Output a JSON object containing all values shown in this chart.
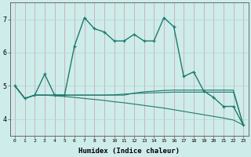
{
  "xlabel": "Humidex (Indice chaleur)",
  "background_color": "#ceecea",
  "grid_color": "#aed8d4",
  "line_color": "#1e7a6e",
  "x_values": [
    0,
    1,
    2,
    3,
    4,
    5,
    6,
    7,
    8,
    9,
    10,
    11,
    12,
    13,
    14,
    15,
    16,
    17,
    18,
    19,
    20,
    21,
    22,
    23
  ],
  "series1": [
    5.0,
    4.62,
    4.72,
    5.35,
    4.72,
    4.72,
    6.2,
    7.05,
    6.72,
    6.62,
    6.35,
    6.35,
    6.55,
    6.35,
    6.35,
    7.05,
    6.78,
    5.28,
    5.42,
    4.85,
    4.65,
    4.38,
    4.38,
    3.82
  ],
  "series2": [
    5.0,
    4.62,
    4.72,
    4.72,
    4.72,
    4.72,
    4.72,
    4.72,
    4.72,
    4.72,
    4.72,
    4.72,
    4.78,
    4.82,
    4.84,
    4.86,
    4.87,
    4.87,
    4.87,
    4.87,
    4.87,
    4.87,
    4.87,
    3.82
  ],
  "series3": [
    5.0,
    4.62,
    4.72,
    4.72,
    4.7,
    4.68,
    4.65,
    4.62,
    4.59,
    4.56,
    4.52,
    4.49,
    4.45,
    4.41,
    4.37,
    4.33,
    4.28,
    4.23,
    4.18,
    4.13,
    4.08,
    4.03,
    3.97,
    3.82
  ],
  "series4": [
    5.0,
    4.62,
    4.72,
    4.72,
    4.72,
    4.72,
    4.72,
    4.72,
    4.72,
    4.72,
    4.73,
    4.75,
    4.77,
    4.78,
    4.79,
    4.8,
    4.81,
    4.81,
    4.81,
    4.81,
    4.81,
    4.81,
    4.81,
    3.82
  ],
  "ylim": [
    3.5,
    7.5
  ],
  "yticks": [
    4,
    5,
    6,
    7
  ],
  "xticks": [
    0,
    1,
    2,
    3,
    4,
    5,
    6,
    7,
    8,
    9,
    10,
    11,
    12,
    13,
    14,
    15,
    16,
    17,
    18,
    19,
    20,
    21,
    22,
    23
  ]
}
